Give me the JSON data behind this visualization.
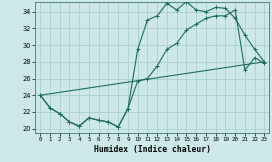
{
  "xlabel": "Humidex (Indice chaleur)",
  "bg_color": "#cce8e8",
  "grid_color": "#aacfcf",
  "line_color": "#1a6b5a",
  "xlim": [
    -0.5,
    23.5
  ],
  "ylim": [
    19.5,
    35.2
  ],
  "xticks": [
    0,
    1,
    2,
    3,
    4,
    5,
    6,
    7,
    8,
    9,
    10,
    11,
    12,
    13,
    14,
    15,
    16,
    17,
    18,
    19,
    20,
    21,
    22,
    23
  ],
  "yticks": [
    20,
    22,
    24,
    26,
    28,
    30,
    32,
    34
  ],
  "series1_x": [
    0,
    1,
    2,
    3,
    4,
    5,
    6,
    7,
    8,
    9,
    10,
    11,
    12,
    13,
    14,
    15,
    16,
    17,
    18,
    19,
    20,
    21,
    22,
    23
  ],
  "series1_y": [
    24,
    22.5,
    21.8,
    20.8,
    20.3,
    21.3,
    21.0,
    20.8,
    20.2,
    22.4,
    29.5,
    33.0,
    33.5,
    35.0,
    34.2,
    35.2,
    34.2,
    34.0,
    34.5,
    34.4,
    33.2,
    31.2,
    29.5,
    28.0
  ],
  "series2_x": [
    0,
    1,
    2,
    3,
    4,
    5,
    6,
    7,
    8,
    9,
    10,
    11,
    12,
    13,
    14,
    15,
    16,
    17,
    18,
    19,
    20,
    21,
    22,
    23
  ],
  "series2_y": [
    24,
    22.5,
    21.8,
    20.8,
    20.3,
    21.3,
    21.0,
    20.8,
    20.2,
    22.4,
    25.7,
    26.0,
    27.5,
    29.5,
    30.2,
    31.8,
    32.5,
    33.2,
    33.5,
    33.5,
    34.2,
    27.0,
    28.5,
    27.8
  ],
  "series3_x": [
    0,
    23
  ],
  "series3_y": [
    24,
    28.0
  ]
}
